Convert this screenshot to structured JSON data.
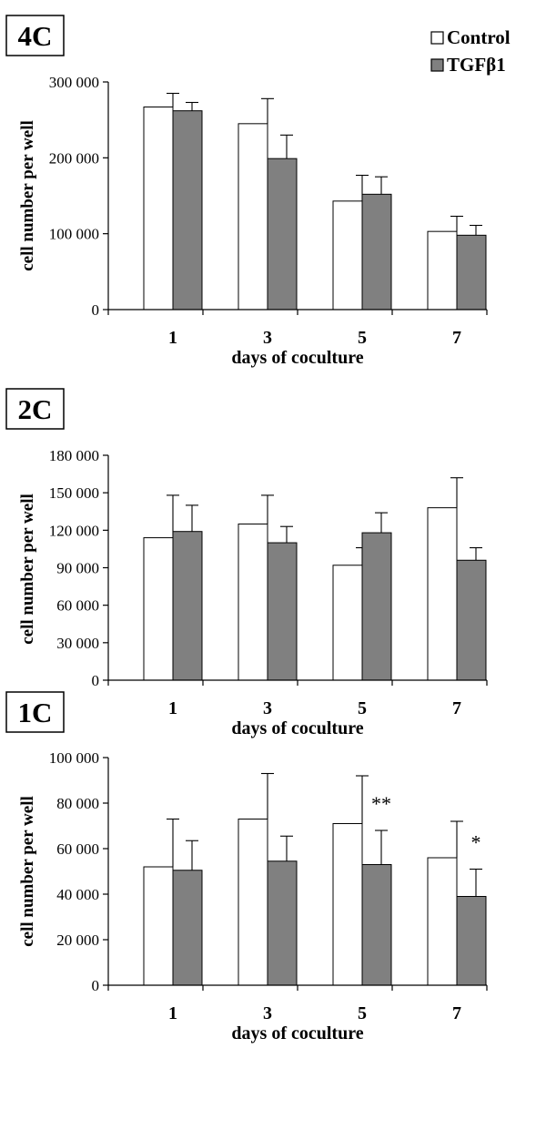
{
  "legend": {
    "items": [
      {
        "label": "Control",
        "color": "#ffffff"
      },
      {
        "label": "TGFβ1",
        "color": "#808080"
      }
    ]
  },
  "chart_data": [
    {
      "type": "bar",
      "panel_label": "4C",
      "categories": [
        "1",
        "3",
        "5",
        "7"
      ],
      "xlabel": "days  of coculture",
      "ylabel": "cell  number  per  well",
      "ylim": [
        0,
        300000
      ],
      "yticks": [
        0,
        100000,
        200000,
        300000
      ],
      "ytick_labels": [
        "0",
        "100 000",
        "200 000",
        "300 000"
      ],
      "series": [
        {
          "name": "Control",
          "color": "#ffffff",
          "values": [
            267000,
            245000,
            143000,
            103000
          ],
          "error": [
            18000,
            33000,
            34000,
            20000
          ]
        },
        {
          "name": "TGFβ1",
          "color": "#808080",
          "values": [
            262000,
            199000,
            152000,
            98000
          ],
          "error": [
            11000,
            31000,
            23000,
            13000
          ]
        }
      ],
      "annotations": []
    },
    {
      "type": "bar",
      "panel_label": "2C",
      "categories": [
        "1",
        "3",
        "5",
        "7"
      ],
      "xlabel": "days  of coculture",
      "ylabel": "cell  number  per  well",
      "ylim": [
        0,
        180000
      ],
      "yticks": [
        0,
        30000,
        60000,
        90000,
        120000,
        150000,
        180000
      ],
      "ytick_labels": [
        "0",
        "30 000",
        "60 000",
        "90 000",
        "120 000",
        "150 000",
        "180 000"
      ],
      "series": [
        {
          "name": "Control",
          "color": "#ffffff",
          "values": [
            114000,
            125000,
            92000,
            138000
          ],
          "error": [
            34000,
            23000,
            14000,
            24000
          ]
        },
        {
          "name": "TGFβ1",
          "color": "#808080",
          "values": [
            119000,
            110000,
            118000,
            96000
          ],
          "error": [
            21000,
            13000,
            16000,
            10000
          ]
        }
      ],
      "annotations": []
    },
    {
      "type": "bar",
      "panel_label": "1C",
      "categories": [
        "1",
        "3",
        "5",
        "7"
      ],
      "xlabel": "days  of coculture",
      "ylabel": "cell  number  per  well",
      "ylim": [
        0,
        100000
      ],
      "yticks": [
        0,
        20000,
        40000,
        60000,
        80000,
        100000
      ],
      "ytick_labels": [
        "0",
        "20 000",
        "40 000",
        "60 000",
        "80 000",
        "100 000"
      ],
      "series": [
        {
          "name": "Control",
          "color": "#ffffff",
          "values": [
            52000,
            73000,
            71000,
            56000
          ],
          "error": [
            21000,
            20000,
            21000,
            16000
          ]
        },
        {
          "name": "TGFβ1",
          "color": "#808080",
          "values": [
            50500,
            54500,
            53000,
            39000
          ],
          "error": [
            13000,
            11000,
            15000,
            12000
          ]
        }
      ],
      "annotations": [
        {
          "category": "5",
          "text": "**"
        },
        {
          "category": "7",
          "text": "*"
        }
      ]
    }
  ]
}
